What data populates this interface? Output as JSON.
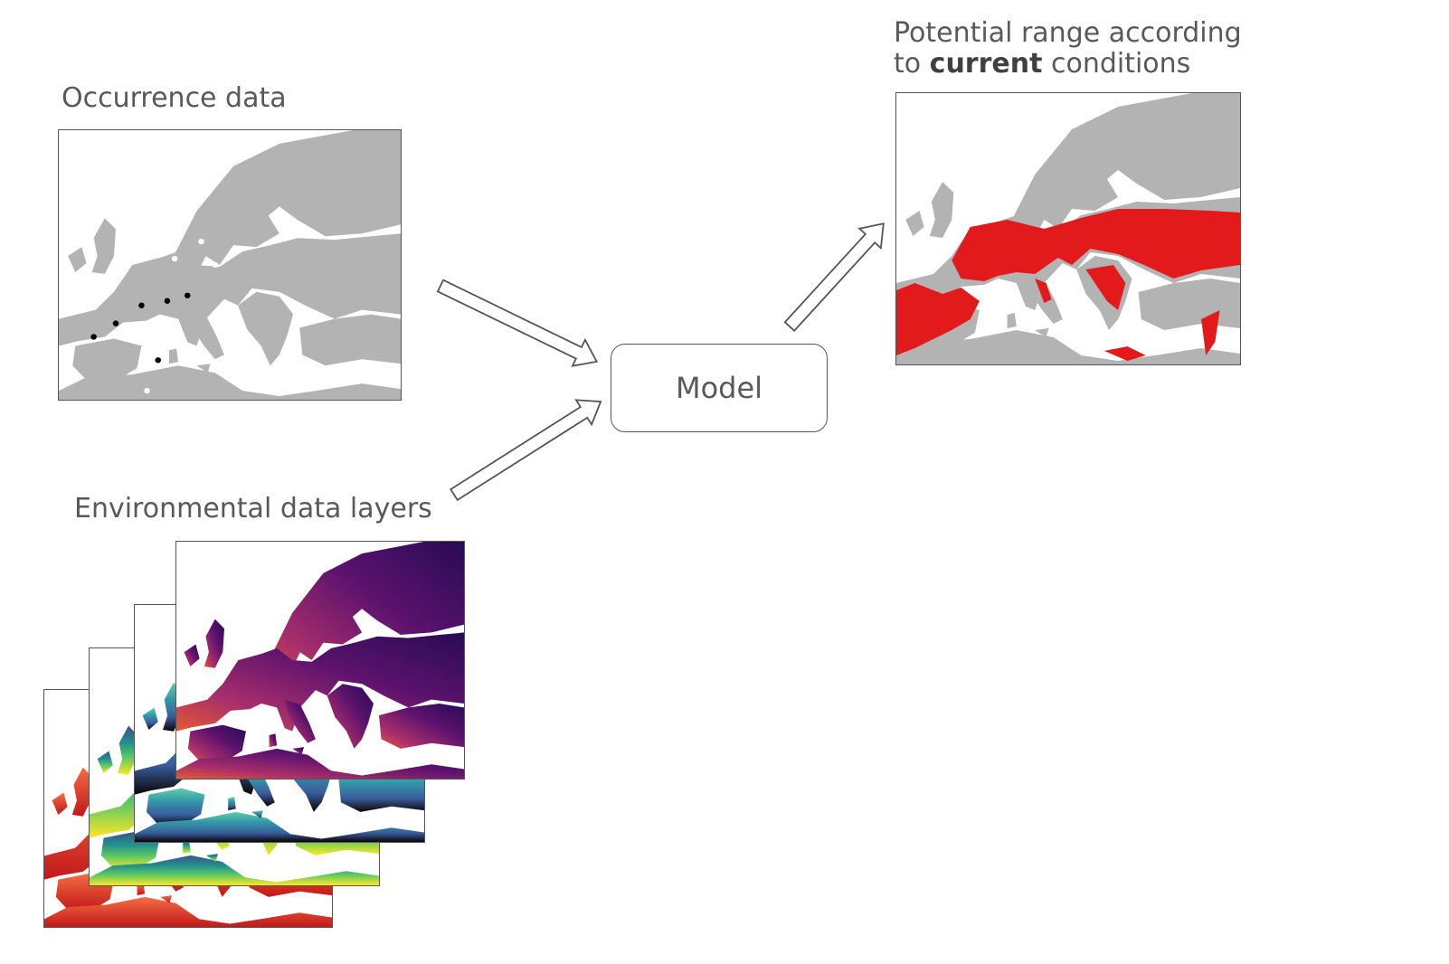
{
  "occurrence": {
    "title": "Occurrence data"
  },
  "environment": {
    "title": "Environmental data layers"
  },
  "model": {
    "label": "Model"
  },
  "output": {
    "title_line1": "Potential range according",
    "title_line2_prefix": "to ",
    "title_line2_bold": "current",
    "title_line2_suffix": " conditions"
  },
  "colors": {
    "land_gray": "#b3b3b3",
    "occurrence_present": "#000000",
    "occurrence_absent": "#ffffff",
    "range_red": "#e31a1c",
    "layer_red": "#d73027",
    "layer_viridis": [
      "#440154",
      "#3b528b",
      "#21918c",
      "#5ec962",
      "#fde725"
    ],
    "layer_mako": [
      "#0b0405",
      "#382a54",
      "#395d9c",
      "#3497a9",
      "#60ceac"
    ],
    "layer_plasma": [
      "#280b54",
      "#5c126e",
      "#a82e6b",
      "#e35932",
      "#f98e09"
    ]
  }
}
